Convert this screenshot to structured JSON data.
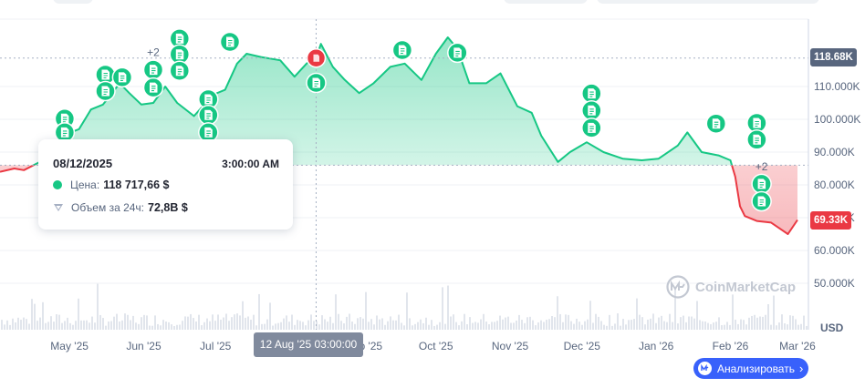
{
  "chart_data": {
    "type": "area",
    "x_axis_ticks": [
      "May '25",
      "Jun '25",
      "Jul '25",
      "Aug '25",
      "Sep '25",
      "Oct '25",
      "Nov '25",
      "Dec '25",
      "Jan '26",
      "Feb '26",
      "Mar '26"
    ],
    "y_axis_ticks": [
      "110.000K",
      "100.000K",
      "90.000K",
      "80.000K",
      "70.000K",
      "60.000K",
      "50.000K"
    ],
    "y_unit": "USD",
    "ylim": [
      45000,
      130000
    ],
    "baseline_value": 86000,
    "colors": {
      "above": "#16c784",
      "below": "#ea3943",
      "news_marker": "#16c784",
      "selected_marker": "#ea3943"
    },
    "series": [
      {
        "x": [
          "2025-04-02",
          "2025-04-08",
          "2025-04-12",
          "2025-04-20",
          "2025-04-28",
          "2025-05-05",
          "2025-05-10",
          "2025-05-15",
          "2025-05-22",
          "2025-05-26",
          "2025-05-31",
          "2025-06-05",
          "2025-06-10",
          "2025-06-15",
          "2025-06-22",
          "2025-06-30",
          "2025-07-05",
          "2025-07-10",
          "2025-07-14",
          "2025-07-20",
          "2025-07-28",
          "2025-08-03",
          "2025-08-08",
          "2025-08-12",
          "2025-08-14",
          "2025-08-19",
          "2025-08-24",
          "2025-08-30",
          "2025-09-05",
          "2025-09-12",
          "2025-09-18",
          "2025-09-25",
          "2025-10-01",
          "2025-10-06",
          "2025-10-10",
          "2025-10-15",
          "2025-10-22",
          "2025-10-28",
          "2025-11-04",
          "2025-11-10",
          "2025-11-14",
          "2025-11-21",
          "2025-11-26",
          "2025-12-03",
          "2025-12-10",
          "2025-12-18",
          "2025-12-26",
          "2026-01-02",
          "2026-01-10",
          "2026-01-14",
          "2026-01-20",
          "2026-01-27",
          "2026-02-01",
          "2026-02-03",
          "2026-02-05",
          "2026-02-07",
          "2026-02-12",
          "2026-02-18",
          "2026-02-25",
          "2026-03-01"
        ],
        "y": [
          84000,
          85000,
          84500,
          87500,
          95000,
          97000,
          103000,
          104500,
          111000,
          108000,
          104500,
          105000,
          110000,
          105000,
          101000,
          107500,
          109000,
          117000,
          120000,
          119000,
          118000,
          113000,
          117000,
          118700,
          123000,
          116000,
          112000,
          108000,
          111000,
          116000,
          117000,
          112000,
          120000,
          125000,
          121500,
          111000,
          111000,
          114000,
          104000,
          102000,
          95000,
          87000,
          90000,
          93000,
          90000,
          88000,
          87500,
          88000,
          92000,
          96000,
          90000,
          89000,
          87500,
          82500,
          73500,
          70500,
          69000,
          68500,
          65000,
          69300
        ]
      }
    ],
    "news_markers": [
      {
        "date": "2025-04-29",
        "value": 100200,
        "count": ""
      },
      {
        "date": "2025-04-29",
        "value": 96000,
        "count": ""
      },
      {
        "date": "2025-05-16",
        "value": 113600,
        "count": ""
      },
      {
        "date": "2025-05-16",
        "value": 108600,
        "count": ""
      },
      {
        "date": "2025-05-23",
        "value": 112800,
        "count": ""
      },
      {
        "date": "2025-06-05",
        "value": 115100,
        "count": "+2"
      },
      {
        "date": "2025-06-05",
        "value": 109700,
        "count": ""
      },
      {
        "date": "2025-06-16",
        "value": 124600,
        "count": ""
      },
      {
        "date": "2025-06-16",
        "value": 119800,
        "count": ""
      },
      {
        "date": "2025-06-16",
        "value": 114800,
        "count": ""
      },
      {
        "date": "2025-06-28",
        "value": 106100,
        "count": ""
      },
      {
        "date": "2025-06-28",
        "value": 101300,
        "count": ""
      },
      {
        "date": "2025-06-28",
        "value": 96000,
        "count": ""
      },
      {
        "date": "2025-07-07",
        "value": 123600,
        "count": ""
      },
      {
        "date": "2025-08-12",
        "value": 111100,
        "count": ""
      },
      {
        "date": "2025-09-17",
        "value": 121100,
        "count": ""
      },
      {
        "date": "2025-10-10",
        "value": 120300,
        "count": ""
      },
      {
        "date": "2025-12-05",
        "value": 107900,
        "count": ""
      },
      {
        "date": "2025-12-05",
        "value": 102700,
        "count": ""
      },
      {
        "date": "2025-12-05",
        "value": 97400,
        "count": ""
      },
      {
        "date": "2026-01-26",
        "value": 98700,
        "count": ""
      },
      {
        "date": "2026-02-12",
        "value": 98900,
        "count": ""
      },
      {
        "date": "2026-02-12",
        "value": 93800,
        "count": ""
      },
      {
        "date": "2026-02-14",
        "value": 80300,
        "count": "+2"
      },
      {
        "date": "2026-02-14",
        "value": 75000,
        "count": ""
      }
    ],
    "selected": {
      "date": "2025-08-12",
      "value": 118700
    }
  },
  "tooltip": {
    "date": "08/12/2025",
    "time": "3:00:00 AM",
    "price_label": "Цена:",
    "price_value": "118 717,66 $",
    "volume_label": "Объем за 24ч:",
    "volume_value": "72,8B $"
  },
  "current_price_tag": "118.68K",
  "last_price_tag": "69.33K",
  "crosshair_date_label": "12 Aug '25 03:00:00",
  "usd_label": "USD",
  "watermark_text": "CoinMarketCap",
  "analyze_button_label": "Анализировать"
}
